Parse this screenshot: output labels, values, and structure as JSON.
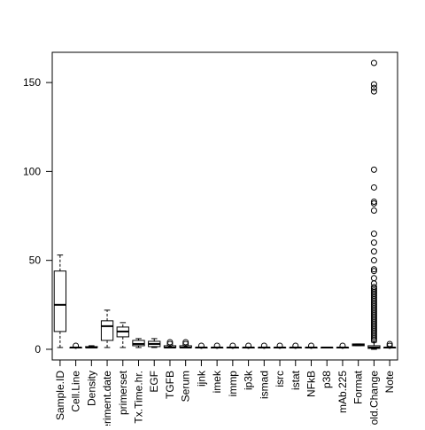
{
  "chart_data": {
    "type": "box",
    "title": "",
    "xlabel": "",
    "ylabel": "",
    "ylim": [
      -6,
      167
    ],
    "yticks": [
      0,
      50,
      100,
      150
    ],
    "grid": false,
    "colors": {
      "stroke": "#000000",
      "background": "#ffffff"
    },
    "categories": [
      "Sample.ID",
      "Cell.Line",
      "Density",
      "Experiment.date",
      "primerset",
      "Tx.Time.hr.",
      "EGF",
      "TGFB",
      "Serum",
      "ijnk",
      "imek",
      "immp",
      "ip3k",
      "ismad",
      "isrc",
      "istat",
      "NFkB",
      "p38",
      "mAb.225",
      "Format",
      "Fold.Change",
      "Note"
    ],
    "boxes": [
      {
        "label": "Sample.ID",
        "min": 1,
        "q1": 10,
        "median": 25,
        "q3": 44,
        "max": 53,
        "outliers": []
      },
      {
        "label": "Cell.Line",
        "min": 1,
        "q1": 1,
        "median": 1,
        "q3": 1,
        "max": 1,
        "outliers": [
          2
        ]
      },
      {
        "label": "Density",
        "min": 1,
        "q1": 1,
        "median": 1,
        "q3": 1.5,
        "max": 2,
        "outliers": []
      },
      {
        "label": "Experiment.date",
        "min": 1,
        "q1": 5,
        "median": 13,
        "q3": 16,
        "max": 22,
        "outliers": []
      },
      {
        "label": "primerset",
        "min": 1,
        "q1": 7,
        "median": 10,
        "q3": 12.5,
        "max": 15,
        "outliers": []
      },
      {
        "label": "Tx.Time.hr.",
        "min": 1,
        "q1": 2,
        "median": 3,
        "q3": 5,
        "max": 6,
        "outliers": []
      },
      {
        "label": "EGF",
        "min": 1,
        "q1": 1.5,
        "median": 3,
        "q3": 4.5,
        "max": 6,
        "outliers": []
      },
      {
        "label": "TGFB",
        "min": 1,
        "q1": 1,
        "median": 1,
        "q3": 2,
        "max": 2,
        "outliers": [
          3,
          4
        ]
      },
      {
        "label": "Serum",
        "min": 1,
        "q1": 1,
        "median": 1,
        "q3": 2,
        "max": 2,
        "outliers": [
          3,
          4
        ]
      },
      {
        "label": "ijnk",
        "min": 1,
        "q1": 1,
        "median": 1,
        "q3": 1,
        "max": 1,
        "outliers": [
          2
        ]
      },
      {
        "label": "imek",
        "min": 1,
        "q1": 1,
        "median": 1,
        "q3": 1,
        "max": 1,
        "outliers": [
          2
        ]
      },
      {
        "label": "immp",
        "min": 1,
        "q1": 1,
        "median": 1,
        "q3": 1,
        "max": 1,
        "outliers": [
          2
        ]
      },
      {
        "label": "ip3k",
        "min": 1,
        "q1": 1,
        "median": 1,
        "q3": 1,
        "max": 1,
        "outliers": [
          2
        ]
      },
      {
        "label": "ismad",
        "min": 1,
        "q1": 1,
        "median": 1,
        "q3": 1,
        "max": 1,
        "outliers": [
          2
        ]
      },
      {
        "label": "isrc",
        "min": 1,
        "q1": 1,
        "median": 1,
        "q3": 1,
        "max": 1,
        "outliers": [
          2
        ]
      },
      {
        "label": "istat",
        "min": 1,
        "q1": 1,
        "median": 1,
        "q3": 1,
        "max": 1,
        "outliers": [
          2
        ]
      },
      {
        "label": "NFkB",
        "min": 1,
        "q1": 1,
        "median": 1,
        "q3": 1,
        "max": 1,
        "outliers": [
          2
        ]
      },
      {
        "label": "p38",
        "min": 1,
        "q1": 1,
        "median": 1,
        "q3": 1,
        "max": 1,
        "outliers": []
      },
      {
        "label": "mAb.225",
        "min": 1,
        "q1": 1,
        "median": 1,
        "q3": 1,
        "max": 1,
        "outliers": [
          2
        ]
      },
      {
        "label": "Format",
        "min": 2,
        "q1": 2,
        "median": 2.5,
        "q3": 3,
        "max": 3,
        "outliers": []
      },
      {
        "label": "Fold.Change",
        "min": 0,
        "q1": 0.5,
        "median": 1,
        "q3": 2,
        "max": 4,
        "outliers": [
          5,
          6,
          7,
          8,
          9,
          10,
          11,
          12,
          13,
          14,
          15,
          16,
          17,
          18,
          19,
          20,
          21,
          22,
          23,
          24,
          25,
          26,
          27,
          28,
          29,
          30,
          31,
          32,
          33,
          34,
          35,
          37,
          40,
          44,
          45,
          50,
          55,
          60,
          65,
          78,
          82,
          83,
          91,
          101,
          145,
          147,
          149,
          161
        ]
      },
      {
        "label": "Note",
        "min": 1,
        "q1": 1,
        "median": 1,
        "q3": 1,
        "max": 1,
        "outliers": [
          2,
          3
        ]
      }
    ]
  }
}
